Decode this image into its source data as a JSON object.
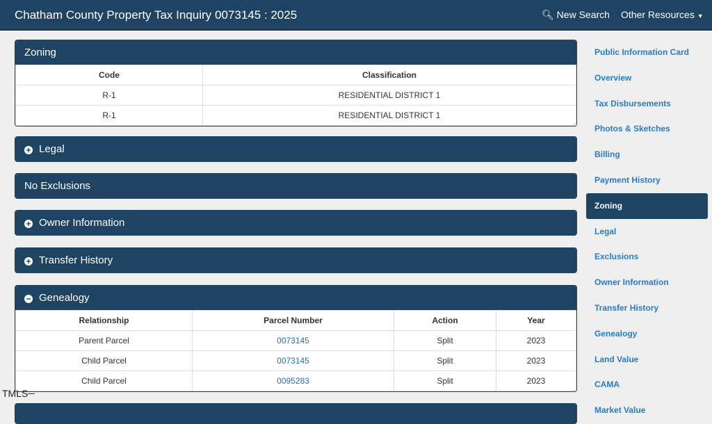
{
  "nav": {
    "title": "Chatham County Property Tax Inquiry",
    "parcel": "0073145 : 2025",
    "new_search": "New Search",
    "other": "Other Resources",
    "search_icon": "search-icon"
  },
  "zoning": {
    "title": "Zoning",
    "headers": [
      "Code",
      "Classification"
    ],
    "rows": [
      [
        "R-1",
        "RESIDENTIAL DISTRICT 1"
      ],
      [
        "R-1",
        "RESIDENTIAL DISTRICT 1"
      ]
    ]
  },
  "legal": {
    "title": "Legal"
  },
  "exclusions": {
    "title": "No Exclusions"
  },
  "owner": {
    "title": "Owner Information"
  },
  "transfer": {
    "title": "Transfer History"
  },
  "genealogy": {
    "title": "Genealogy",
    "headers": [
      "Relationship",
      "Parcel Number",
      "Action",
      "Year"
    ],
    "rows": [
      [
        "Parent Parcel",
        "0073145",
        "Split",
        "2023"
      ],
      [
        "Child Parcel",
        "0073145",
        "Split",
        "2023"
      ],
      [
        "Child Parcel",
        "0095283",
        "Split",
        "2023"
      ]
    ]
  },
  "sidebar": {
    "items": [
      "Public Information Card",
      "Overview",
      "Tax Disbursements",
      "Photos & Sketches",
      "Billing",
      "Payment History",
      "Zoning",
      "Legal",
      "Exclusions",
      "Owner Information",
      "Transfer History",
      "Genealogy",
      "Land Value",
      "CAMA",
      "Market Value"
    ],
    "active": "Zoning"
  },
  "watermark": "TMLS"
}
